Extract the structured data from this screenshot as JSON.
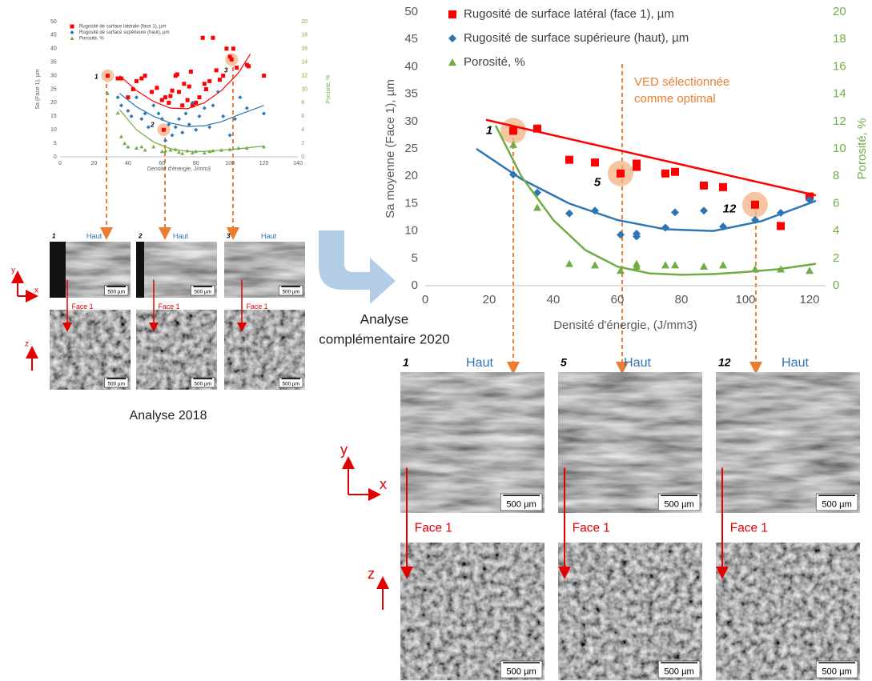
{
  "chart_data": [
    {
      "type": "scatter",
      "x_label": "Densité d'énergie, J/mm3",
      "y_label": "Sa (Face 1), µm",
      "y2_label": "Porosité, %",
      "xlim": [
        0,
        140
      ],
      "xticks": [
        0,
        20,
        40,
        60,
        80,
        100,
        120,
        140
      ],
      "ylim": [
        0,
        50
      ],
      "yticks": [
        0,
        5,
        10,
        15,
        20,
        25,
        30,
        35,
        40,
        45,
        50
      ],
      "y2lim": [
        0,
        20
      ],
      "y2ticks": [
        0,
        2,
        4,
        6,
        8,
        10,
        12,
        14,
        16,
        18,
        20
      ],
      "grid": false,
      "series": [
        {
          "name": "Rugosité de surface latérale (face 1), µm",
          "color": "#ff0000",
          "marker": "square",
          "x": [
            28,
            34,
            36,
            40,
            43,
            45,
            48,
            50,
            54,
            57,
            60,
            61,
            62,
            64,
            65,
            66,
            68,
            69,
            70,
            72,
            73,
            75,
            76,
            77,
            78,
            80,
            82,
            84,
            85,
            86,
            88,
            90,
            92,
            94,
            96,
            98,
            100,
            101,
            102,
            104,
            110,
            111,
            120
          ],
          "values": [
            30,
            29,
            29,
            22,
            25,
            28,
            29,
            30,
            24,
            25.5,
            21,
            10,
            22,
            20,
            22.5,
            24.5,
            30,
            30.5,
            24,
            19,
            27,
            21,
            26,
            31.5,
            19,
            20,
            22,
            44,
            27,
            25,
            28,
            44,
            32,
            28.5,
            30,
            40,
            37,
            36,
            40,
            33,
            34,
            33.5,
            30
          ],
          "trend": {
            "x": [
              35,
              45,
              55,
              65,
              75,
              85,
              95,
              105,
              112
            ],
            "values": [
              30,
              24.5,
              20.5,
              18,
              17.8,
              20,
              24.5,
              31,
              38
            ]
          }
        },
        {
          "name": "Rugosité de surface supérieure (haut), µm",
          "color": "#2e75b6",
          "marker": "diamond",
          "x": [
            34,
            36,
            40,
            42,
            45,
            48,
            50,
            52,
            55,
            58,
            60,
            62,
            64,
            66,
            68,
            70,
            72,
            74,
            76,
            78,
            80,
            82,
            85,
            88,
            90,
            93,
            96,
            100,
            103,
            106,
            110,
            120
          ],
          "values": [
            22,
            19,
            17,
            15,
            22,
            14,
            16,
            11,
            19,
            16,
            14,
            6,
            12,
            8,
            11,
            14,
            9,
            16,
            12,
            20,
            10,
            15,
            18,
            11,
            19,
            24,
            15,
            8,
            14,
            22,
            18,
            16
          ],
          "trend": {
            "x": [
              35,
              45,
              55,
              65,
              75,
              85,
              95,
              105,
              120
            ],
            "values": [
              23.5,
              18.5,
              15,
              12.5,
              11.2,
              11.5,
              13,
              15.5,
              19
            ]
          }
        },
        {
          "name": "Porosité, %",
          "color": "#70ad47",
          "marker": "triangle",
          "axis": "y2",
          "x": [
            28,
            34,
            36,
            38,
            40,
            45,
            48,
            50,
            55,
            60,
            62,
            65,
            68,
            70,
            72,
            75,
            78,
            80,
            85,
            88,
            90,
            95,
            100,
            105,
            110,
            120
          ],
          "values": [
            9.4,
            6.5,
            3,
            2,
            1.5,
            1.3,
            1.5,
            1,
            1.5,
            0.8,
            0.9,
            1,
            1.1,
            0.7,
            0.5,
            0.9,
            0.6,
            0.8,
            0.6,
            0.8,
            0.9,
            1,
            1.1,
            1.3,
            1.3,
            1.5
          ],
          "trend": {
            "x": [
              35,
              45,
              55,
              65,
              75,
              85,
              95,
              105,
              120
            ],
            "values": [
              7,
              4,
              2.2,
              1.2,
              0.8,
              0.8,
              1,
              1.2,
              1.6
            ]
          }
        }
      ],
      "annotations": [
        {
          "text": "1",
          "x": 28,
          "y": 30
        },
        {
          "text": "2",
          "x": 61,
          "y": 10
        },
        {
          "text": "3",
          "x": 101,
          "y": 36
        }
      ]
    },
    {
      "type": "scatter",
      "x_label": "Densité d'énergie, (J/mm3)",
      "y_label": "Sa moyenne (Face 1), µm",
      "y2_label": "Porosité, %",
      "xlim": [
        0,
        125
      ],
      "xticks": [
        0,
        20,
        40,
        60,
        80,
        100,
        120
      ],
      "ylim": [
        0,
        50
      ],
      "yticks": [
        0,
        5,
        10,
        15,
        20,
        25,
        30,
        35,
        40,
        45,
        50
      ],
      "y2lim": [
        0,
        20
      ],
      "y2ticks": [
        0,
        2,
        4,
        6,
        8,
        10,
        12,
        14,
        16,
        18,
        20
      ],
      "grid": false,
      "series": [
        {
          "name": "Rugosité de surface latéral (face 1), µm",
          "color": "#ff0000",
          "marker": "square",
          "x": [
            27.5,
            35,
            45,
            53,
            61,
            66,
            66,
            75,
            78,
            87,
            93,
            103,
            111,
            120
          ],
          "values": [
            28.3,
            28.7,
            23,
            22.5,
            20.5,
            21.7,
            22.3,
            20.5,
            20.8,
            18.3,
            18,
            14.8,
            10.9,
            16.3
          ],
          "trend": {
            "x": [
              19,
              122
            ],
            "values": [
              30.3,
              16.5
            ]
          }
        },
        {
          "name": "Rugosité de surface supérieure (haut), µm",
          "color": "#2e75b6",
          "marker": "diamond",
          "x": [
            27.5,
            35,
            45,
            53,
            61,
            66,
            66,
            75,
            78,
            87,
            93,
            103,
            111,
            120
          ],
          "values": [
            20.3,
            17,
            13.2,
            13.7,
            9.3,
            9.5,
            9,
            10.6,
            13.4,
            13.7,
            10.8,
            12,
            13.3,
            15.7
          ],
          "trend": {
            "x": [
              16,
              30,
              45,
              60,
              75,
              90,
              105,
              122
            ],
            "values": [
              25,
              19.5,
              15,
              12,
              10.3,
              10,
              11.8,
              15.5
            ]
          }
        },
        {
          "name": "Porosité, %",
          "color": "#70ad47",
          "marker": "triangle",
          "axis": "y2",
          "x": [
            27.5,
            35,
            45,
            53,
            61,
            66,
            66,
            75,
            78,
            87,
            93,
            103,
            111,
            120
          ],
          "values": [
            10.3,
            5.7,
            1.6,
            1.5,
            1.1,
            1.6,
            1.4,
            1.5,
            1.5,
            1.4,
            1.5,
            1.2,
            1.2,
            1.1
          ],
          "trend": {
            "x": [
              22,
              30,
              40,
              50,
              60,
              70,
              80,
              90,
              100,
              110,
              122
            ],
            "values": [
              11.7,
              8,
              4.8,
              2.6,
              1.4,
              0.9,
              0.8,
              0.85,
              1,
              1.2,
              1.6
            ]
          }
        }
      ],
      "annotations": [
        {
          "text": "1",
          "x": 27.5,
          "y": 28.3
        },
        {
          "text": "5",
          "x": 61,
          "y": 20.5
        },
        {
          "text": "12",
          "x": 103,
          "y": 14.8
        }
      ],
      "note": [
        "VED sélectionnée",
        "comme optimal"
      ]
    }
  ],
  "figure": {
    "left_caption": "Analyse 2018",
    "right_caption": [
      "Analyse",
      "complémentaire 2020"
    ],
    "left_samples": [
      "1",
      "2",
      "3"
    ],
    "right_samples": [
      "1",
      "5",
      "12"
    ],
    "top_view": "Haut",
    "side_view": "Face 1",
    "scale_bar": "500 µm",
    "axis_x": "x",
    "axis_y": "y",
    "axis_z": "z"
  }
}
